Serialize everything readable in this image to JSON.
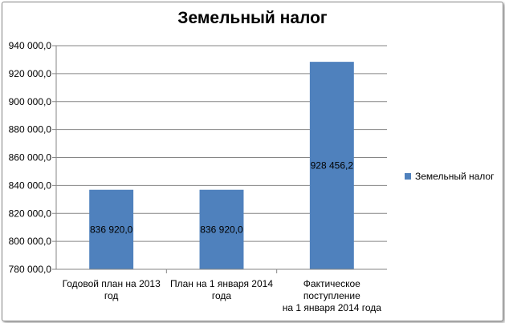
{
  "chart_data": {
    "type": "bar",
    "title": "Земельный налог",
    "categories": [
      [
        "Годовой  план на 2013",
        "год"
      ],
      [
        "План на 1 января 2014",
        "года"
      ],
      [
        "Фактическое",
        "поступление",
        "на  1 января   2014 года"
      ]
    ],
    "series": [
      {
        "name": "Земельный налог",
        "values": [
          836920.0,
          836920.0,
          928456.2
        ],
        "labels": [
          "836 920,0",
          "836 920,0",
          "928 456,2"
        ],
        "color": "#4f81bd"
      }
    ],
    "ylim": [
      780000,
      940000
    ],
    "yticks": [
      780000,
      800000,
      820000,
      840000,
      860000,
      880000,
      900000,
      920000,
      940000
    ],
    "ytick_labels": [
      "780 000,0",
      "800 000,0",
      "820 000,0",
      "840 000,0",
      "860 000,0",
      "880 000,0",
      "900 000,0",
      "920 000,0",
      "940 000,0"
    ],
    "grid": true,
    "legend": "right",
    "grid_color": "#868686",
    "xlabel": "",
    "ylabel": ""
  }
}
